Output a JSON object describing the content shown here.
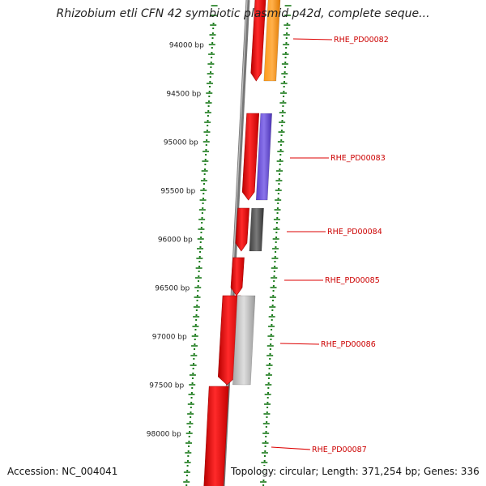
{
  "title": "Rhizobium etli CFN 42 symbiotic plasmid p42d, complete seque...",
  "accession": "Accession: NC_004041",
  "summary": "Topology: circular; Length: 371,254 bp; Genes: 336",
  "colors": {
    "tick": "#1a7a1a",
    "backbone": "#707070",
    "gene_forward": "#e8151b",
    "label_line": "#dd0000",
    "label_text": "#cc0000"
  },
  "ruler": [
    {
      "label": "94000 bp",
      "bp": 94000
    },
    {
      "label": "94500 bp",
      "bp": 94500
    },
    {
      "label": "95000 bp",
      "bp": 95000
    },
    {
      "label": "95500 bp",
      "bp": 95500
    },
    {
      "label": "96000 bp",
      "bp": 96000
    },
    {
      "label": "96500 bp",
      "bp": 96500
    },
    {
      "label": "97000 bp",
      "bp": 97000
    },
    {
      "label": "97500 bp",
      "bp": 97500
    },
    {
      "label": "98000 bp",
      "bp": 98000
    }
  ],
  "genes": [
    {
      "label": "RHE_PD00082",
      "feature_color": "#ff8c00"
    },
    {
      "label": "RHE_PD00083",
      "feature_color": "#6a4fd8"
    },
    {
      "label": "RHE_PD00084",
      "feature_color": "#555555"
    },
    {
      "label": "RHE_PD00085",
      "feature_color": ""
    },
    {
      "label": "RHE_PD00086",
      "feature_color": "#bbbbbb"
    },
    {
      "label": "RHE_PD00087",
      "feature_color": ""
    }
  ]
}
